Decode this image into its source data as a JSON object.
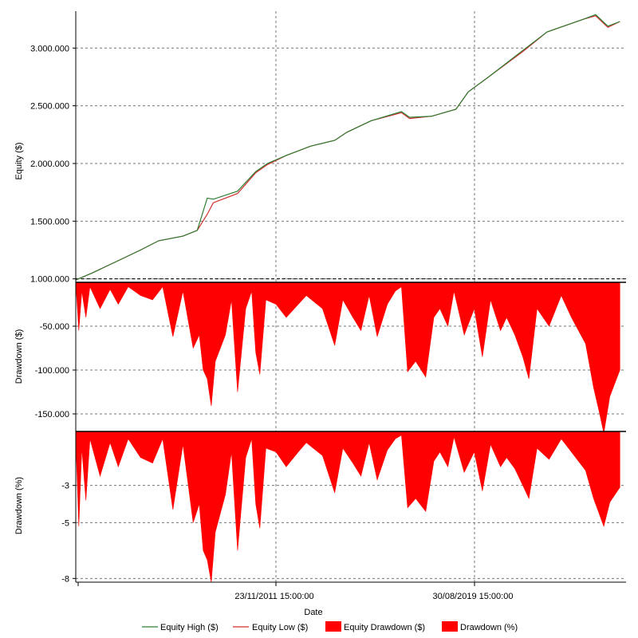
{
  "chart_data": {
    "type": "line",
    "xlabel": "Date",
    "x_ticks": [
      "23/11/2011 15:00:00",
      "30/08/2019 15:00:00"
    ],
    "x_range": [
      "2004-01-01",
      "2026-09-01"
    ],
    "grid": true,
    "legend_placement": "bottom",
    "legend": [
      {
        "label": "Equity High ($)",
        "swatch": "line",
        "color": "#2e7d32"
      },
      {
        "label": "Equity Low ($)",
        "swatch": "line",
        "color": "#d32f2f"
      },
      {
        "label": "Equity Drawdown ($)",
        "swatch": "box",
        "color": "#ff0000"
      },
      {
        "label": "Drawdown (%)",
        "swatch": "box",
        "color": "#ff0000"
      }
    ],
    "panels": [
      {
        "id": "equity",
        "type": "line",
        "ylabel": "Equity ($)",
        "ylim": [
          970000,
          3320000
        ],
        "yticks": [
          1000000,
          1500000,
          2000000,
          2500000,
          3000000
        ],
        "ytick_labels": [
          "1.000.000",
          "1.500.000",
          "2.000.000",
          "2.500.000",
          "3.000.000"
        ],
        "series": [
          {
            "name": "Equity Low ($)",
            "color": "#d32f2f",
            "points": [
              [
                "2004-01-01",
                990000
              ],
              [
                "2004-09-01",
                1050000
              ],
              [
                "2005-09-01",
                1150000
              ],
              [
                "2006-09-01",
                1250000
              ],
              [
                "2007-06-01",
                1330000
              ],
              [
                "2008-06-01",
                1370000
              ],
              [
                "2009-01-01",
                1420000
              ],
              [
                "2009-06-01",
                1560000
              ],
              [
                "2009-09-01",
                1660000
              ],
              [
                "2010-09-01",
                1740000
              ],
              [
                "2011-06-01",
                1920000
              ],
              [
                "2011-11-23",
                1990000
              ],
              [
                "2012-09-01",
                2070000
              ],
              [
                "2013-09-01",
                2150000
              ],
              [
                "2014-09-01",
                2200000
              ],
              [
                "2015-03-01",
                2270000
              ],
              [
                "2016-03-01",
                2370000
              ],
              [
                "2017-06-01",
                2440000
              ],
              [
                "2017-10-01",
                2390000
              ],
              [
                "2018-09-01",
                2410000
              ],
              [
                "2019-08-30",
                2470000
              ],
              [
                "2020-03-01",
                2620000
              ],
              [
                "2021-01-01",
                2750000
              ],
              [
                "2022-06-01",
                2970000
              ],
              [
                "2023-06-01",
                3140000
              ],
              [
                "2024-12-01",
                3250000
              ],
              [
                "2025-06-01",
                3280000
              ],
              [
                "2025-12-01",
                3180000
              ],
              [
                "2026-06-01",
                3230000
              ]
            ]
          },
          {
            "name": "Equity High ($)",
            "color": "#2e7d32",
            "points": [
              [
                "2004-01-01",
                990000
              ],
              [
                "2004-09-01",
                1050000
              ],
              [
                "2005-09-01",
                1150000
              ],
              [
                "2006-09-01",
                1250000
              ],
              [
                "2007-06-01",
                1330000
              ],
              [
                "2008-06-01",
                1370000
              ],
              [
                "2009-01-01",
                1420000
              ],
              [
                "2009-06-01",
                1700000
              ],
              [
                "2009-09-01",
                1690000
              ],
              [
                "2010-09-01",
                1760000
              ],
              [
                "2011-06-01",
                1930000
              ],
              [
                "2011-11-23",
                2000000
              ],
              [
                "2012-09-01",
                2070000
              ],
              [
                "2013-09-01",
                2150000
              ],
              [
                "2014-09-01",
                2200000
              ],
              [
                "2015-03-01",
                2270000
              ],
              [
                "2016-03-01",
                2370000
              ],
              [
                "2017-06-01",
                2450000
              ],
              [
                "2017-10-01",
                2400000
              ],
              [
                "2018-09-01",
                2410000
              ],
              [
                "2019-08-30",
                2470000
              ],
              [
                "2020-03-01",
                2620000
              ],
              [
                "2021-01-01",
                2750000
              ],
              [
                "2022-06-01",
                2980000
              ],
              [
                "2023-06-01",
                3140000
              ],
              [
                "2024-12-01",
                3250000
              ],
              [
                "2025-06-01",
                3290000
              ],
              [
                "2025-12-01",
                3190000
              ],
              [
                "2026-06-01",
                3230000
              ]
            ]
          }
        ]
      },
      {
        "id": "drawdown-usd",
        "type": "area",
        "ylabel": "Drawdown ($)",
        "ylim": [
          -170000,
          0
        ],
        "yticks": [
          -50000,
          -100000,
          -150000
        ],
        "ytick_labels": [
          "-50.000",
          "-100.000",
          "-150.000"
        ],
        "series": [
          {
            "name": "Equity Drawdown ($)",
            "color": "#ff0000",
            "points": [
              [
                "2004-01-01",
                0
              ],
              [
                "2004-02-15",
                -55000
              ],
              [
                "2004-04-01",
                -10000
              ],
              [
                "2004-06-01",
                -40000
              ],
              [
                "2004-08-01",
                -5000
              ],
              [
                "2005-01-01",
                -30000
              ],
              [
                "2005-06-01",
                -8000
              ],
              [
                "2005-10-01",
                -25000
              ],
              [
                "2006-03-01",
                -5000
              ],
              [
                "2006-09-01",
                -15000
              ],
              [
                "2007-03-01",
                -20000
              ],
              [
                "2007-08-01",
                -5000
              ],
              [
                "2008-01-01",
                -62000
              ],
              [
                "2008-06-01",
                -10000
              ],
              [
                "2008-11-01",
                -75000
              ],
              [
                "2009-02-01",
                -60000
              ],
              [
                "2009-04-01",
                -100000
              ],
              [
                "2009-06-01",
                -110000
              ],
              [
                "2009-08-01",
                -141000
              ],
              [
                "2009-10-01",
                -90000
              ],
              [
                "2010-03-01",
                -60000
              ],
              [
                "2010-06-01",
                -20000
              ],
              [
                "2010-09-01",
                -125000
              ],
              [
                "2011-01-01",
                -30000
              ],
              [
                "2011-04-01",
                -10000
              ],
              [
                "2011-06-01",
                -80000
              ],
              [
                "2011-08-01",
                -105000
              ],
              [
                "2011-11-01",
                -20000
              ],
              [
                "2012-04-01",
                -25000
              ],
              [
                "2012-09-01",
                -40000
              ],
              [
                "2013-03-01",
                -25000
              ],
              [
                "2013-07-01",
                -15000
              ],
              [
                "2014-03-01",
                -30000
              ],
              [
                "2014-09-01",
                -72000
              ],
              [
                "2015-01-01",
                -20000
              ],
              [
                "2015-06-01",
                -40000
              ],
              [
                "2015-10-01",
                -55000
              ],
              [
                "2016-02-01",
                -15000
              ],
              [
                "2016-06-01",
                -62000
              ],
              [
                "2016-11-01",
                -25000
              ],
              [
                "2017-03-01",
                -10000
              ],
              [
                "2017-06-01",
                -5000
              ],
              [
                "2017-09-01",
                -102000
              ],
              [
                "2018-01-01",
                -90000
              ],
              [
                "2018-06-01",
                -108000
              ],
              [
                "2018-10-01",
                -40000
              ],
              [
                "2019-01-01",
                -30000
              ],
              [
                "2019-05-01",
                -50000
              ],
              [
                "2019-08-01",
                -10000
              ],
              [
                "2020-01-01",
                -60000
              ],
              [
                "2020-06-01",
                -30000
              ],
              [
                "2020-10-01",
                -85000
              ],
              [
                "2021-02-01",
                -20000
              ],
              [
                "2021-07-01",
                -55000
              ],
              [
                "2021-10-01",
                -40000
              ],
              [
                "2022-02-01",
                -60000
              ],
              [
                "2022-06-01",
                -85000
              ],
              [
                "2022-09-01",
                -110000
              ],
              [
                "2023-01-01",
                -30000
              ],
              [
                "2023-07-01",
                -50000
              ],
              [
                "2024-01-01",
                -15000
              ],
              [
                "2024-06-01",
                -40000
              ],
              [
                "2025-01-01",
                -70000
              ],
              [
                "2025-05-01",
                -120000
              ],
              [
                "2025-08-01",
                -150000
              ],
              [
                "2025-10-01",
                -172000
              ],
              [
                "2026-01-01",
                -130000
              ],
              [
                "2026-06-01",
                -100000
              ]
            ]
          }
        ]
      },
      {
        "id": "drawdown-pct",
        "type": "area",
        "ylabel": "Drawdown (%)",
        "ylim": [
          -8.2,
          -0.1
        ],
        "yticks": [
          -3,
          -5,
          -8
        ],
        "ytick_labels": [
          "-3",
          "-5",
          "-8"
        ],
        "series": [
          {
            "name": "Drawdown (%)",
            "color": "#ff0000",
            "points": [
              [
                "2004-01-01",
                -0.5
              ],
              [
                "2004-02-15",
                -5.2
              ],
              [
                "2004-04-01",
                -1.0
              ],
              [
                "2004-06-01",
                -3.8
              ],
              [
                "2004-08-01",
                -0.5
              ],
              [
                "2005-01-01",
                -2.5
              ],
              [
                "2005-06-01",
                -0.7
              ],
              [
                "2005-10-01",
                -2.0
              ],
              [
                "2006-03-01",
                -0.5
              ],
              [
                "2006-09-01",
                -1.5
              ],
              [
                "2007-03-01",
                -1.8
              ],
              [
                "2007-08-01",
                -0.5
              ],
              [
                "2008-01-01",
                -4.3
              ],
              [
                "2008-06-01",
                -0.8
              ],
              [
                "2008-11-01",
                -5.0
              ],
              [
                "2009-02-01",
                -4.0
              ],
              [
                "2009-04-01",
                -6.5
              ],
              [
                "2009-06-01",
                -7.0
              ],
              [
                "2009-08-01",
                -8.2
              ],
              [
                "2009-10-01",
                -5.5
              ],
              [
                "2010-03-01",
                -3.5
              ],
              [
                "2010-06-01",
                -1.2
              ],
              [
                "2010-09-01",
                -6.5
              ],
              [
                "2011-01-01",
                -1.5
              ],
              [
                "2011-04-01",
                -0.5
              ],
              [
                "2011-06-01",
                -4.0
              ],
              [
                "2011-08-01",
                -5.3
              ],
              [
                "2011-11-01",
                -1.0
              ],
              [
                "2012-04-01",
                -1.2
              ],
              [
                "2012-09-01",
                -2.0
              ],
              [
                "2013-03-01",
                -1.2
              ],
              [
                "2013-07-01",
                -0.7
              ],
              [
                "2014-03-01",
                -1.4
              ],
              [
                "2014-09-01",
                -3.4
              ],
              [
                "2015-01-01",
                -1.0
              ],
              [
                "2015-06-01",
                -1.8
              ],
              [
                "2015-10-01",
                -2.5
              ],
              [
                "2016-02-01",
                -0.7
              ],
              [
                "2016-06-01",
                -2.7
              ],
              [
                "2016-11-01",
                -1.1
              ],
              [
                "2017-03-01",
                -0.5
              ],
              [
                "2017-06-01",
                -0.3
              ],
              [
                "2017-09-01",
                -4.2
              ],
              [
                "2018-01-01",
                -3.7
              ],
              [
                "2018-06-01",
                -4.4
              ],
              [
                "2018-10-01",
                -1.7
              ],
              [
                "2019-01-01",
                -1.2
              ],
              [
                "2019-05-01",
                -2.0
              ],
              [
                "2019-08-01",
                -0.4
              ],
              [
                "2020-01-01",
                -2.3
              ],
              [
                "2020-06-01",
                -1.2
              ],
              [
                "2020-10-01",
                -3.3
              ],
              [
                "2021-02-01",
                -0.8
              ],
              [
                "2021-07-01",
                -2.0
              ],
              [
                "2021-10-01",
                -1.5
              ],
              [
                "2022-02-01",
                -2.1
              ],
              [
                "2022-06-01",
                -3.0
              ],
              [
                "2022-09-01",
                -3.7
              ],
              [
                "2023-01-01",
                -1.0
              ],
              [
                "2023-07-01",
                -1.6
              ],
              [
                "2024-01-01",
                -0.5
              ],
              [
                "2024-06-01",
                -1.2
              ],
              [
                "2025-01-01",
                -2.2
              ],
              [
                "2025-05-01",
                -3.7
              ],
              [
                "2025-08-01",
                -4.6
              ],
              [
                "2025-10-01",
                -5.2
              ],
              [
                "2026-01-01",
                -3.9
              ],
              [
                "2026-06-01",
                -3.1
              ]
            ]
          }
        ]
      }
    ]
  }
}
